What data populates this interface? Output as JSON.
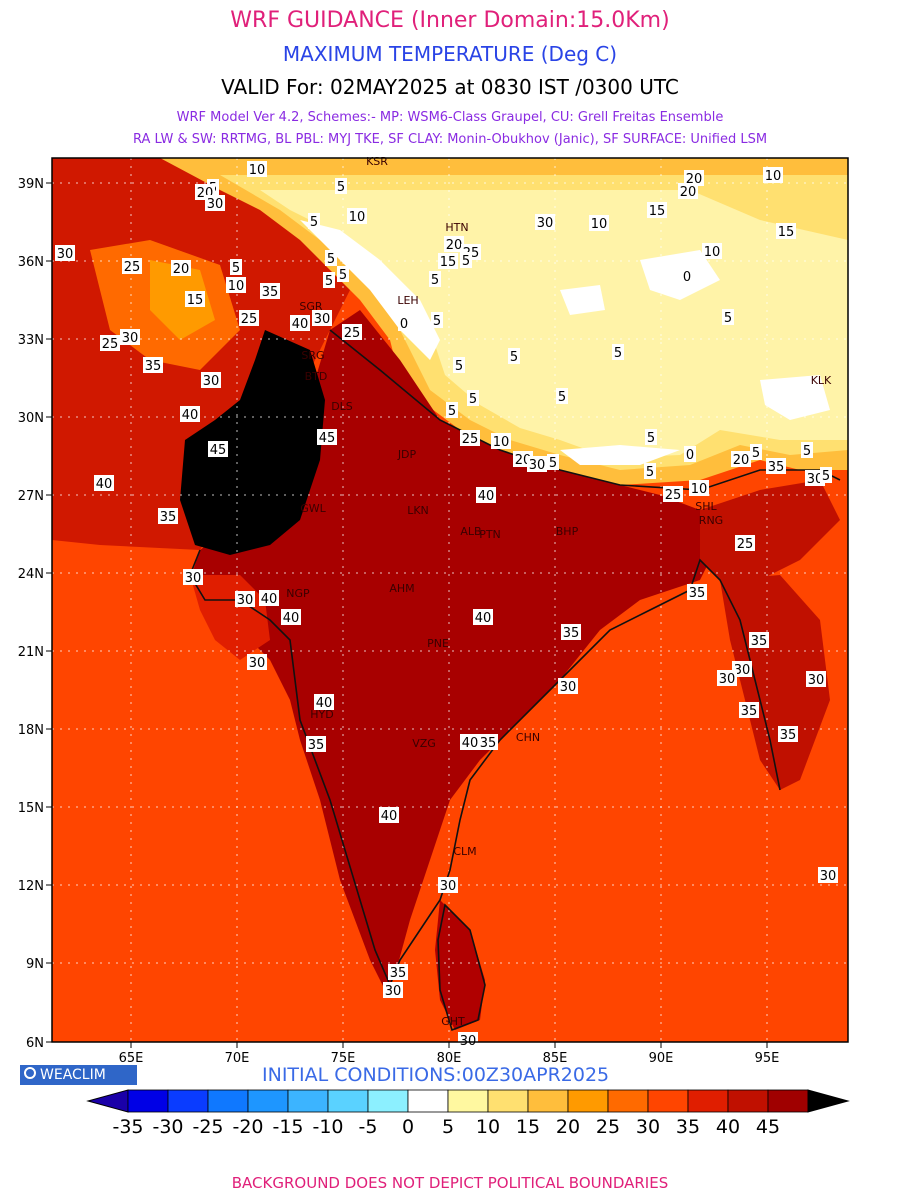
{
  "header": {
    "title": "WRF GUIDANCE (Inner Domain:15.0Km)",
    "variable": "MAXIMUM TEMPERATURE (Deg C)",
    "valid": "VALID For: 02MAY2025 at 0830 IST /0300 UTC",
    "model_line": "WRF Model Ver 4.2, Schemes:- MP: WSM6-Class Graupel, CU: Grell Freitas Ensemble",
    "physics_line": "RA LW & SW: RRTMG, BL PBL: MYJ TKE, SF CLAY: Monin-Obukhov (Janic), SF SURFACE: Unified LSM"
  },
  "axes": {
    "lon_ticks": [
      "65E",
      "70E",
      "75E",
      "80E",
      "85E",
      "90E",
      "95E"
    ],
    "lat_ticks": [
      "6N",
      "9N",
      "12N",
      "15N",
      "18N",
      "21N",
      "24N",
      "27N",
      "30N",
      "33N",
      "36N",
      "39N"
    ]
  },
  "stations": [
    "KSR",
    "HTN",
    "LEH",
    "SGR",
    "SRG",
    "BTD",
    "DLS",
    "JDP",
    "GWL",
    "LKN",
    "ALB",
    "PTN",
    "BHP",
    "AHM",
    "NGP",
    "PNE",
    "HYD",
    "VZG",
    "CHN",
    "CLM",
    "GHT",
    "SHL",
    "RNG",
    "KLK"
  ],
  "contour_labels": [
    "10",
    "5",
    "25",
    "20",
    "30",
    "35",
    "40",
    "45",
    "15",
    "0"
  ],
  "colorbar": {
    "ticks": [
      "-35",
      "-30",
      "-25",
      "-20",
      "-15",
      "-10",
      "-5",
      "0",
      "5",
      "10",
      "15",
      "20",
      "25",
      "30",
      "35",
      "40",
      "45"
    ],
    "colors": [
      "#1a00a8",
      "#0000e6",
      "#0a3cff",
      "#0f78ff",
      "#1e96ff",
      "#3cb4ff",
      "#5ad2ff",
      "#8cf0ff",
      "#ffffff",
      "#fff8a0",
      "#ffe070",
      "#ffbe3c",
      "#ff9a00",
      "#ff6a00",
      "#ff4500",
      "#e01e00",
      "#c01000",
      "#a00000",
      "#000000"
    ]
  },
  "branding": {
    "badge": "WEACLIM"
  },
  "initial_conditions": "INITIAL CONDITIONS:00Z30APR2025",
  "footer": "BACKGROUND DOES NOT DEPICT POLITICAL BOUNDARIES",
  "palette": {
    "sea": "#ff4500",
    "land_hot": "#b00000",
    "land_warm": "#d22000",
    "plateau": "#fff3a8",
    "snow": "#ffffff",
    "extreme": "#000000"
  }
}
